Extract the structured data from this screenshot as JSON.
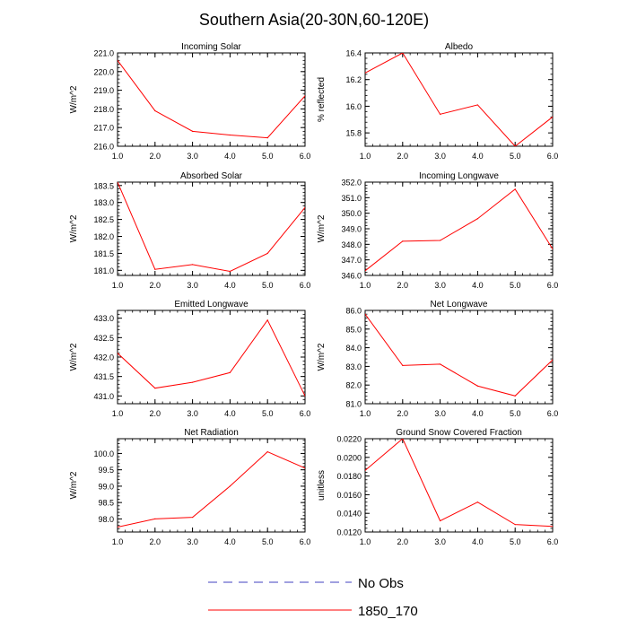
{
  "figure": {
    "title": "Southern Asia(20-30N,60-120E)"
  },
  "chart_data": [
    {
      "type": "line",
      "title": "Incoming Solar",
      "xlabel": "",
      "ylabel": "W/m^2",
      "x": [
        1,
        2,
        3,
        4,
        5,
        6
      ],
      "xlim": [
        1,
        6
      ],
      "ylim": [
        216.0,
        221.0
      ],
      "xticks": [
        1,
        2,
        3,
        4,
        5,
        6
      ],
      "xtick_labels": [
        "1.0",
        "2.0",
        "3.0",
        "4.0",
        "5.0",
        "6.0"
      ],
      "yticks": [
        216,
        217,
        218,
        219,
        220,
        221
      ],
      "ytick_labels": [
        "216.0",
        "217.0",
        "218.0",
        "219.0",
        "220.0",
        "221.0"
      ],
      "series": [
        {
          "name": "1850_170",
          "color": "#ff0000",
          "values": [
            220.6,
            217.9,
            216.8,
            216.6,
            216.45,
            218.7
          ]
        }
      ]
    },
    {
      "type": "line",
      "title": "Albedo",
      "xlabel": "",
      "ylabel": "% reflected",
      "x": [
        1,
        2,
        3,
        4,
        5,
        6
      ],
      "xlim": [
        1,
        6
      ],
      "ylim": [
        15.7,
        16.4
      ],
      "xticks": [
        1,
        2,
        3,
        4,
        5,
        6
      ],
      "xtick_labels": [
        "1.0",
        "2.0",
        "3.0",
        "4.0",
        "5.0",
        "6.0"
      ],
      "yticks": [
        15.8,
        16.0,
        16.2,
        16.4
      ],
      "ytick_labels": [
        "15.8",
        "16.0",
        "16.2",
        "16.4"
      ],
      "series": [
        {
          "name": "1850_170",
          "color": "#ff0000",
          "values": [
            16.25,
            16.4,
            15.94,
            16.01,
            15.7,
            15.92
          ]
        }
      ]
    },
    {
      "type": "line",
      "title": "Absorbed Solar",
      "xlabel": "",
      "ylabel": "W/m^2",
      "x": [
        1,
        2,
        3,
        4,
        5,
        6
      ],
      "xlim": [
        1,
        6
      ],
      "ylim": [
        180.85,
        183.6
      ],
      "xticks": [
        1,
        2,
        3,
        4,
        5,
        6
      ],
      "xtick_labels": [
        "1.0",
        "2.0",
        "3.0",
        "4.0",
        "5.0",
        "6.0"
      ],
      "yticks": [
        181.0,
        181.5,
        182.0,
        182.5,
        183.0,
        183.5
      ],
      "ytick_labels": [
        "181.0",
        "181.5",
        "182.0",
        "182.5",
        "183.0",
        "183.5"
      ],
      "series": [
        {
          "name": "1850_170",
          "color": "#ff0000",
          "values": [
            183.6,
            181.03,
            181.17,
            180.97,
            181.5,
            182.85
          ]
        }
      ]
    },
    {
      "type": "line",
      "title": "Incoming Longwave",
      "xlabel": "",
      "ylabel": "W/m^2",
      "x": [
        1,
        2,
        3,
        4,
        5,
        6
      ],
      "xlim": [
        1,
        6
      ],
      "ylim": [
        346.0,
        352.0
      ],
      "xticks": [
        1,
        2,
        3,
        4,
        5,
        6
      ],
      "xtick_labels": [
        "1.0",
        "2.0",
        "3.0",
        "4.0",
        "5.0",
        "6.0"
      ],
      "yticks": [
        346,
        347,
        348,
        349,
        350,
        351,
        352
      ],
      "ytick_labels": [
        "346.0",
        "347.0",
        "348.0",
        "349.0",
        "350.0",
        "351.0",
        "352.0"
      ],
      "series": [
        {
          "name": "1850_170",
          "color": "#ff0000",
          "values": [
            346.3,
            348.2,
            348.25,
            349.65,
            351.55,
            347.7
          ]
        }
      ]
    },
    {
      "type": "line",
      "title": "Emitted Longwave",
      "xlabel": "",
      "ylabel": "W/m^2",
      "x": [
        1,
        2,
        3,
        4,
        5,
        6
      ],
      "xlim": [
        1,
        6
      ],
      "ylim": [
        430.8,
        433.2
      ],
      "xticks": [
        1,
        2,
        3,
        4,
        5,
        6
      ],
      "xtick_labels": [
        "1.0",
        "2.0",
        "3.0",
        "4.0",
        "5.0",
        "6.0"
      ],
      "yticks": [
        431.0,
        431.5,
        432.0,
        432.5,
        433.0
      ],
      "ytick_labels": [
        "431.0",
        "431.5",
        "432.0",
        "432.5",
        "433.0"
      ],
      "series": [
        {
          "name": "1850_170",
          "color": "#ff0000",
          "values": [
            432.1,
            431.2,
            431.35,
            431.6,
            432.95,
            431.0
          ]
        }
      ]
    },
    {
      "type": "line",
      "title": "Net Longwave",
      "xlabel": "",
      "ylabel": "W/m^2",
      "x": [
        1,
        2,
        3,
        4,
        5,
        6
      ],
      "xlim": [
        1,
        6
      ],
      "ylim": [
        81.0,
        86.0
      ],
      "xticks": [
        1,
        2,
        3,
        4,
        5,
        6
      ],
      "xtick_labels": [
        "1.0",
        "2.0",
        "3.0",
        "4.0",
        "5.0",
        "6.0"
      ],
      "yticks": [
        81,
        82,
        83,
        84,
        85,
        86
      ],
      "ytick_labels": [
        "81.0",
        "82.0",
        "83.0",
        "84.0",
        "85.0",
        "86.0"
      ],
      "series": [
        {
          "name": "1850_170",
          "color": "#ff0000",
          "values": [
            85.8,
            83.05,
            83.12,
            81.95,
            81.42,
            83.35
          ]
        }
      ]
    },
    {
      "type": "line",
      "title": "Net Radiation",
      "xlabel": "",
      "ylabel": "W/m^2",
      "x": [
        1,
        2,
        3,
        4,
        5,
        6
      ],
      "xlim": [
        1,
        6
      ],
      "ylim": [
        97.6,
        100.45
      ],
      "xticks": [
        1,
        2,
        3,
        4,
        5,
        6
      ],
      "xtick_labels": [
        "1.0",
        "2.0",
        "3.0",
        "4.0",
        "5.0",
        "6.0"
      ],
      "yticks": [
        98.0,
        98.5,
        99.0,
        99.5,
        100.0
      ],
      "ytick_labels": [
        "98.0",
        "98.5",
        "99.0",
        "99.5",
        "100.0"
      ],
      "series": [
        {
          "name": "1850_170",
          "color": "#ff0000",
          "values": [
            97.75,
            98.0,
            98.05,
            99.0,
            100.05,
            99.55
          ]
        }
      ]
    },
    {
      "type": "line",
      "title": "Ground Snow Covered Fraction",
      "xlabel": "",
      "ylabel": "unitless",
      "x": [
        1,
        2,
        3,
        4,
        5,
        6
      ],
      "xlim": [
        1,
        6
      ],
      "ylim": [
        0.012,
        0.022
      ],
      "xticks": [
        1,
        2,
        3,
        4,
        5,
        6
      ],
      "xtick_labels": [
        "1.0",
        "2.0",
        "3.0",
        "4.0",
        "5.0",
        "6.0"
      ],
      "yticks": [
        0.012,
        0.014,
        0.016,
        0.018,
        0.02,
        0.022
      ],
      "ytick_labels": [
        "0.0120",
        "0.0140",
        "0.0160",
        "0.0180",
        "0.0200",
        "0.0220"
      ],
      "series": [
        {
          "name": "1850_170",
          "color": "#ff0000",
          "values": [
            0.0186,
            0.022,
            0.0132,
            0.0152,
            0.0128,
            0.0126
          ]
        }
      ]
    }
  ],
  "legend": {
    "placement": "bottom-center",
    "items": [
      {
        "label": "No Obs",
        "color": "#4040c0",
        "style": "dashed"
      },
      {
        "label": "1850_170",
        "color": "#ff0000",
        "style": "solid"
      }
    ]
  }
}
